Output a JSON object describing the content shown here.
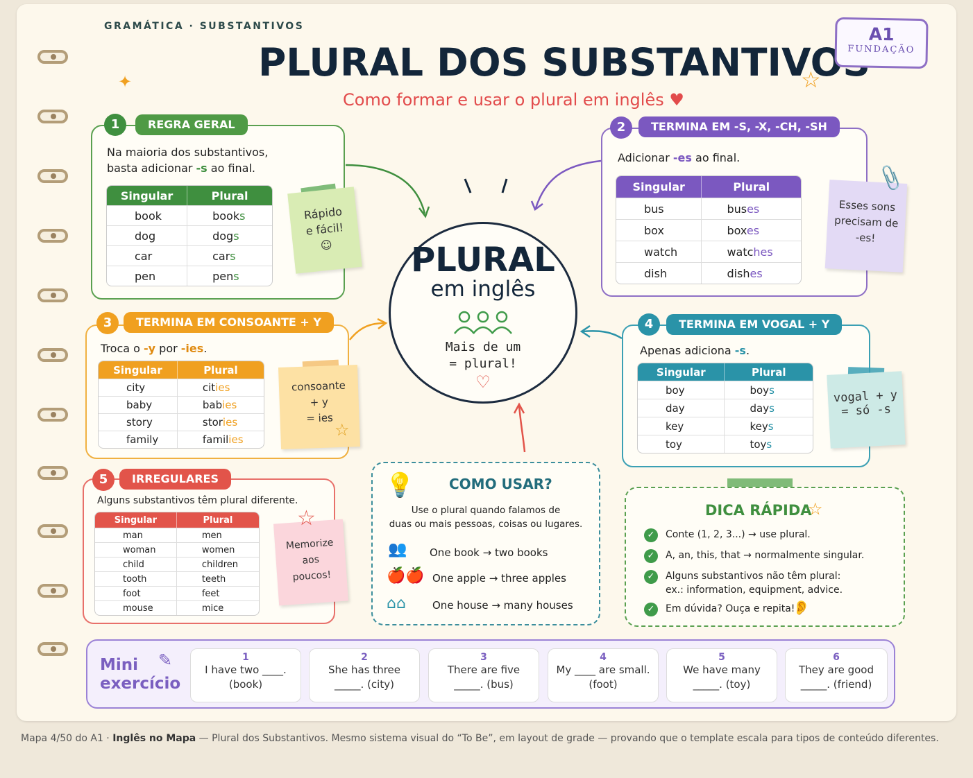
{
  "header": {
    "eyebrow": "GRAMÁTICA · SUBSTANTIVOS",
    "title": "PLURAL DOS SUBSTANTIVOS",
    "subtitle": "Como formar e usar o plural em inglês ♥",
    "badge_level": "A1",
    "badge_sub": "FUNDAÇÃO"
  },
  "center": {
    "big": "PLURAL",
    "sub": "em inglês",
    "note_line1": "Mais de um",
    "note_line2": "= plural!"
  },
  "colors": {
    "green": "#3f8f3f",
    "purple": "#7b58c0",
    "orange": "#f0a020",
    "teal": "#2a93a8",
    "red": "#e2544a",
    "navy": "#13263a"
  },
  "rule1": {
    "num": "1",
    "title": "REGRA GERAL",
    "intro_a": "Na maioria dos substantivos,",
    "intro_b": "basta adicionar ",
    "intro_hl": "-s",
    "intro_c": " ao final.",
    "headers": [
      "Singular",
      "Plural"
    ],
    "rows": [
      [
        "book",
        "book",
        "s"
      ],
      [
        "dog",
        "dog",
        "s"
      ],
      [
        "car",
        "car",
        "s"
      ],
      [
        "pen",
        "pen",
        "s"
      ]
    ],
    "note": [
      "Rápido",
      "e fácil!",
      "☺"
    ]
  },
  "rule2": {
    "num": "2",
    "title": "TERMINA EM -S, -X, -CH, -SH",
    "intro_a": "Adicionar ",
    "intro_hl": "-es",
    "intro_c": " ao final.",
    "headers": [
      "Singular",
      "Plural"
    ],
    "rows": [
      [
        "bus",
        "bus",
        "es"
      ],
      [
        "box",
        "box",
        "es"
      ],
      [
        "watch",
        "watc",
        "hes"
      ],
      [
        "dish",
        "dish",
        "es"
      ]
    ],
    "note": [
      "Esses sons",
      "precisam de",
      "-es!"
    ]
  },
  "rule3": {
    "num": "3",
    "title": "TERMINA EM CONSOANTE + Y",
    "intro_a": "Troca o ",
    "intro_hl": "-y",
    "intro_b": " por ",
    "intro_hl2": "-ies",
    "intro_c": ".",
    "headers": [
      "Singular",
      "Plural"
    ],
    "rows": [
      [
        "city",
        "cit",
        "ies"
      ],
      [
        "baby",
        "bab",
        "ies"
      ],
      [
        "story",
        "stor",
        "ies"
      ],
      [
        "family",
        "famil",
        "ies"
      ]
    ],
    "note": [
      "consoante",
      "+ y",
      "= ies"
    ]
  },
  "rule4": {
    "num": "4",
    "title": "TERMINA EM VOGAL + Y",
    "intro_a": "Apenas adiciona ",
    "intro_hl": "-s",
    "intro_c": ".",
    "headers": [
      "Singular",
      "Plural"
    ],
    "rows": [
      [
        "boy",
        "boy",
        "s"
      ],
      [
        "day",
        "day",
        "s"
      ],
      [
        "key",
        "key",
        "s"
      ],
      [
        "toy",
        "toy",
        "s"
      ]
    ],
    "note": [
      "vogal + y",
      "= só -s"
    ]
  },
  "rule5": {
    "num": "5",
    "title": "IRREGULARES",
    "intro": "Alguns substantivos têm plural diferente.",
    "headers": [
      "Singular",
      "Plural"
    ],
    "rows": [
      [
        "man",
        "men"
      ],
      [
        "woman",
        "women"
      ],
      [
        "child",
        "children"
      ],
      [
        "tooth",
        "teeth"
      ],
      [
        "foot",
        "feet"
      ],
      [
        "mouse",
        "mice"
      ]
    ],
    "note": [
      "Memorize",
      "aos",
      "poucos!"
    ]
  },
  "howto": {
    "title": "COMO USAR?",
    "desc_a": "Use o plural quando falamos de",
    "desc_b": "duas ou mais pessoas, coisas ou lugares.",
    "examples": [
      {
        "one": "One book",
        "many": "two books"
      },
      {
        "one": "One apple",
        "many": "three apples"
      },
      {
        "one": "One house",
        "many": "many houses"
      }
    ]
  },
  "tip": {
    "title": "DICA RÁPIDA",
    "items": [
      "Conte (1, 2, 3...) → use plural.",
      "A, an, this, that → normalmente singular.",
      "Alguns substantivos não têm plural:",
      "Em dúvida? Ouça e repita!"
    ],
    "item3_sub": "ex.: information, equipment, advice."
  },
  "exercise": {
    "label_a": "Mini",
    "label_b": "exercício",
    "items": [
      {
        "n": "1",
        "a": "I have two ____.",
        "b": "(book)"
      },
      {
        "n": "2",
        "a": "She has three",
        "b": "_____. (city)"
      },
      {
        "n": "3",
        "a": "There are five",
        "b": "_____. (bus)"
      },
      {
        "n": "4",
        "a": "My ____ are small.",
        "b": "(foot)"
      },
      {
        "n": "5",
        "a": "We have many",
        "b": "_____. (toy)"
      },
      {
        "n": "6",
        "a": "They are good",
        "b": "_____. (friend)"
      }
    ]
  },
  "caption": {
    "a": "Mapa 4/50 do A1  ·  ",
    "b": "Inglês no Mapa",
    "c": " — Plural dos Substantivos. Mesmo sistema visual do “To Be”, em layout de grade — provando que o template escala para tipos de conteúdo diferentes."
  }
}
